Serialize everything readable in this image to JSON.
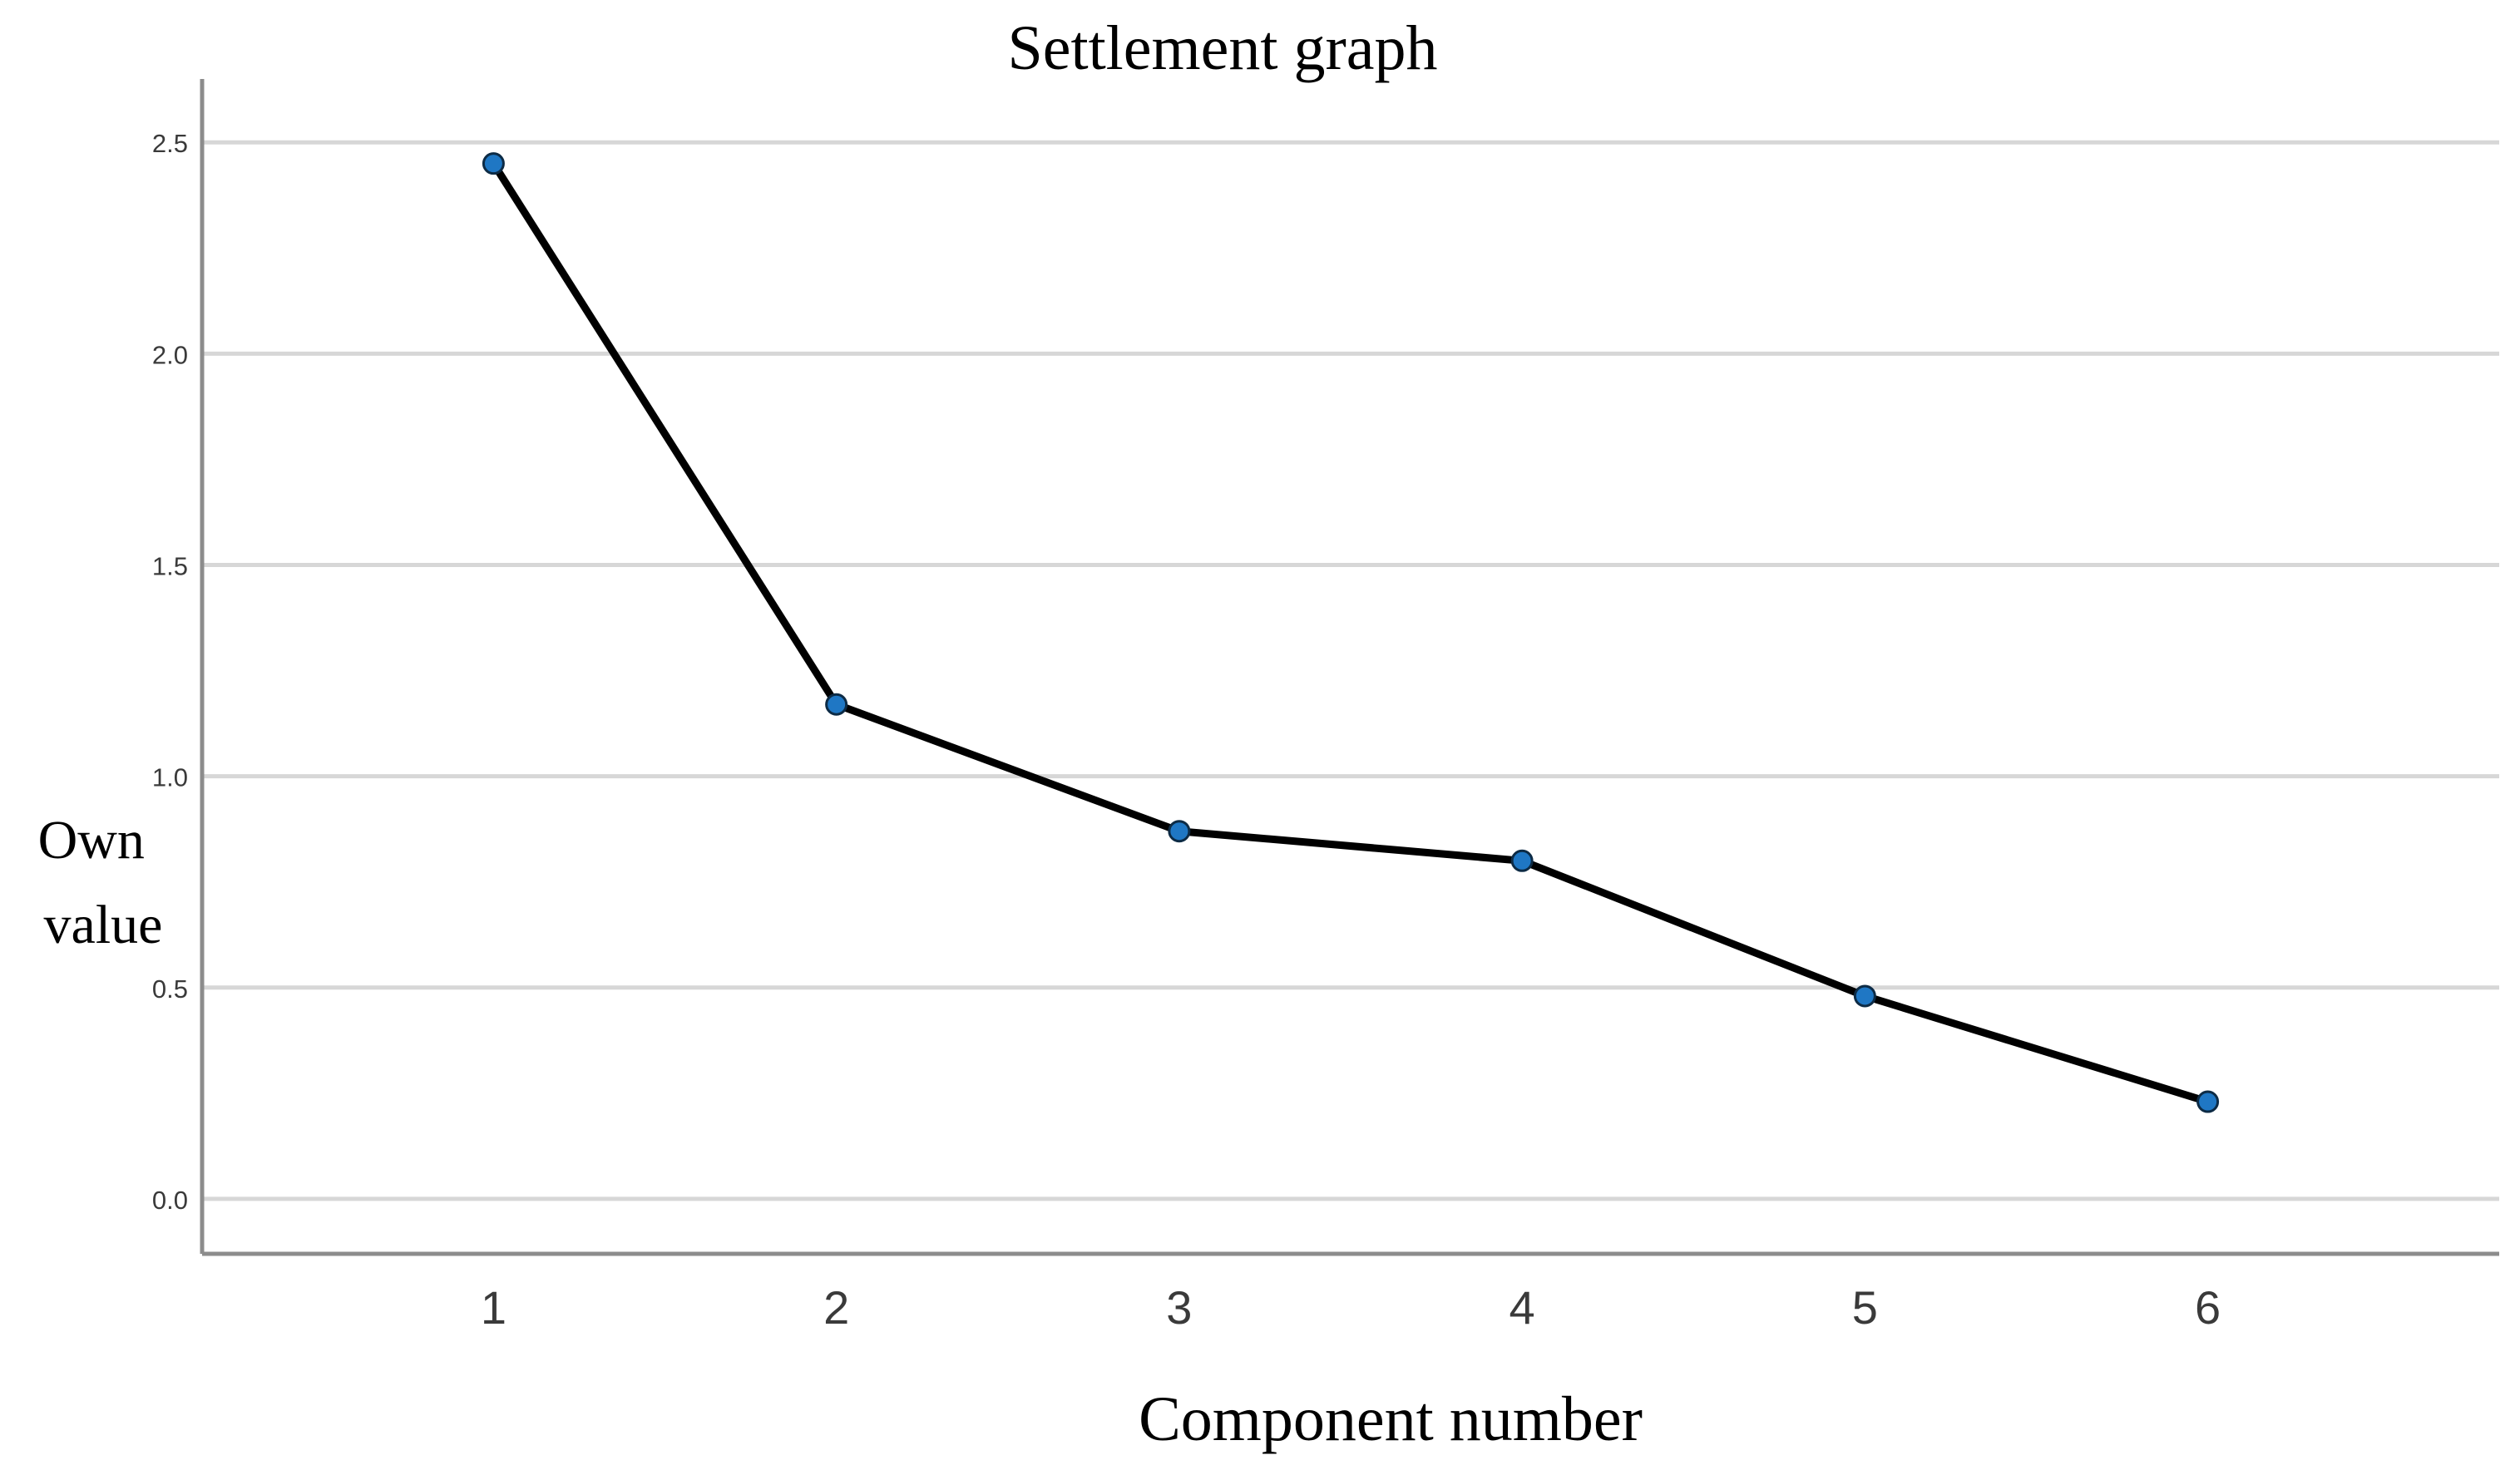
{
  "chart_data": {
    "type": "line",
    "title": "Settlement graph",
    "xlabel": "Component number",
    "ylabel_lines": [
      "Own",
      "value"
    ],
    "categories": [
      1,
      2,
      3,
      4,
      5,
      6
    ],
    "x_tick_labels": [
      "1",
      "2",
      "3",
      "4",
      "5",
      "6"
    ],
    "y_ticks": [
      0.0,
      0.5,
      1.0,
      1.5,
      2.0,
      2.5
    ],
    "y_tick_labels": [
      "0.0",
      "0.5",
      "1.0",
      "1.5",
      "2.0",
      "2.5"
    ],
    "ylim": [
      -0.13,
      2.65
    ],
    "xlim": [
      0.15,
      6.85
    ],
    "grid": "horizontal",
    "legend": "none",
    "series": [
      {
        "values": [
          2.45,
          1.17,
          0.87,
          0.8,
          0.48,
          0.23
        ],
        "line_color": "#000000",
        "marker_color": "#1f77c4"
      }
    ]
  }
}
